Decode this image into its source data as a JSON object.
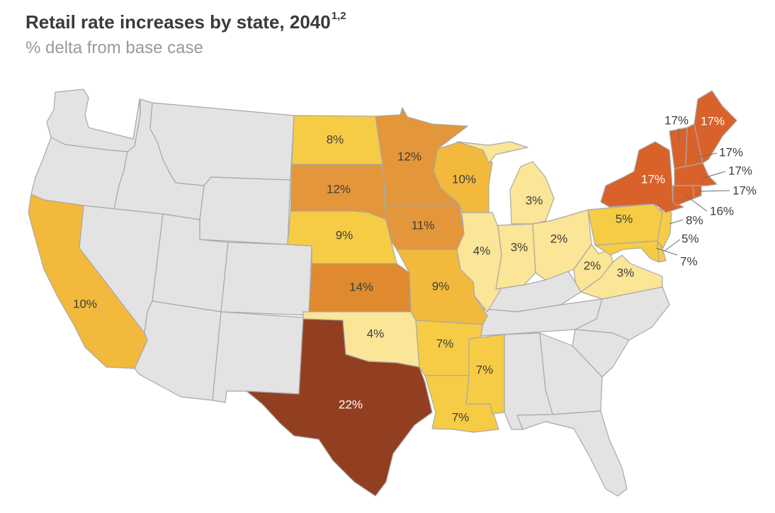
{
  "header": {
    "title": "Retail rate increases by state, 2040",
    "title_superscript": "1,2",
    "subtitle": "% delta from base case"
  },
  "colors": {
    "no_data": "#e3e3e3",
    "border": "#a8a8a8",
    "level_2_4": "#fbe596",
    "level_5_8": "#f6cc45",
    "level_9_10": "#f2b93c",
    "level_11_12": "#e4963a",
    "level_14": "#df8a2f",
    "level_16_17": "#d9622b",
    "level_22": "#923f21"
  },
  "states": {
    "ND": {
      "label": "8%",
      "value": 8
    },
    "MN": {
      "label": "12%",
      "value": 12
    },
    "SD": {
      "label": "12%",
      "value": 12
    },
    "WI": {
      "label": "10%",
      "value": 10
    },
    "MI": {
      "label": "3%",
      "value": 3
    },
    "NE": {
      "label": "9%",
      "value": 9
    },
    "IA": {
      "label": "11%",
      "value": 11
    },
    "IL": {
      "label": "4%",
      "value": 4
    },
    "IN": {
      "label": "3%",
      "value": 3
    },
    "OH": {
      "label": "2%",
      "value": 2
    },
    "PA": {
      "label": "5%",
      "value": 5
    },
    "CA": {
      "label": "10%",
      "value": 10
    },
    "KS": {
      "label": "14%",
      "value": 14
    },
    "MO": {
      "label": "9%",
      "value": 9
    },
    "WV": {
      "label": "2%",
      "value": 2
    },
    "VA": {
      "label": "3%",
      "value": 3
    },
    "OK": {
      "label": "4%",
      "value": 4
    },
    "AR": {
      "label": "7%",
      "value": 7
    },
    "MS": {
      "label": "7%",
      "value": 7
    },
    "LA": {
      "label": "7%",
      "value": 7
    },
    "TX": {
      "label": "22%",
      "value": 22
    },
    "NY": {
      "label": "17%",
      "value": 17
    },
    "ME": {
      "label": "17%",
      "value": 17
    },
    "VT": {
      "label": "17%",
      "value": 17
    },
    "NH": {
      "label": "17%",
      "value": 17
    },
    "MA": {
      "label": "17%",
      "value": 17
    },
    "RI": {
      "label": "17%",
      "value": 17
    },
    "CT": {
      "label": "16%",
      "value": 16
    },
    "NJ": {
      "label": "8%",
      "value": 8
    },
    "DE": {
      "label": "5%",
      "value": 5
    },
    "MD": {
      "label": "7%",
      "value": 7
    }
  }
}
